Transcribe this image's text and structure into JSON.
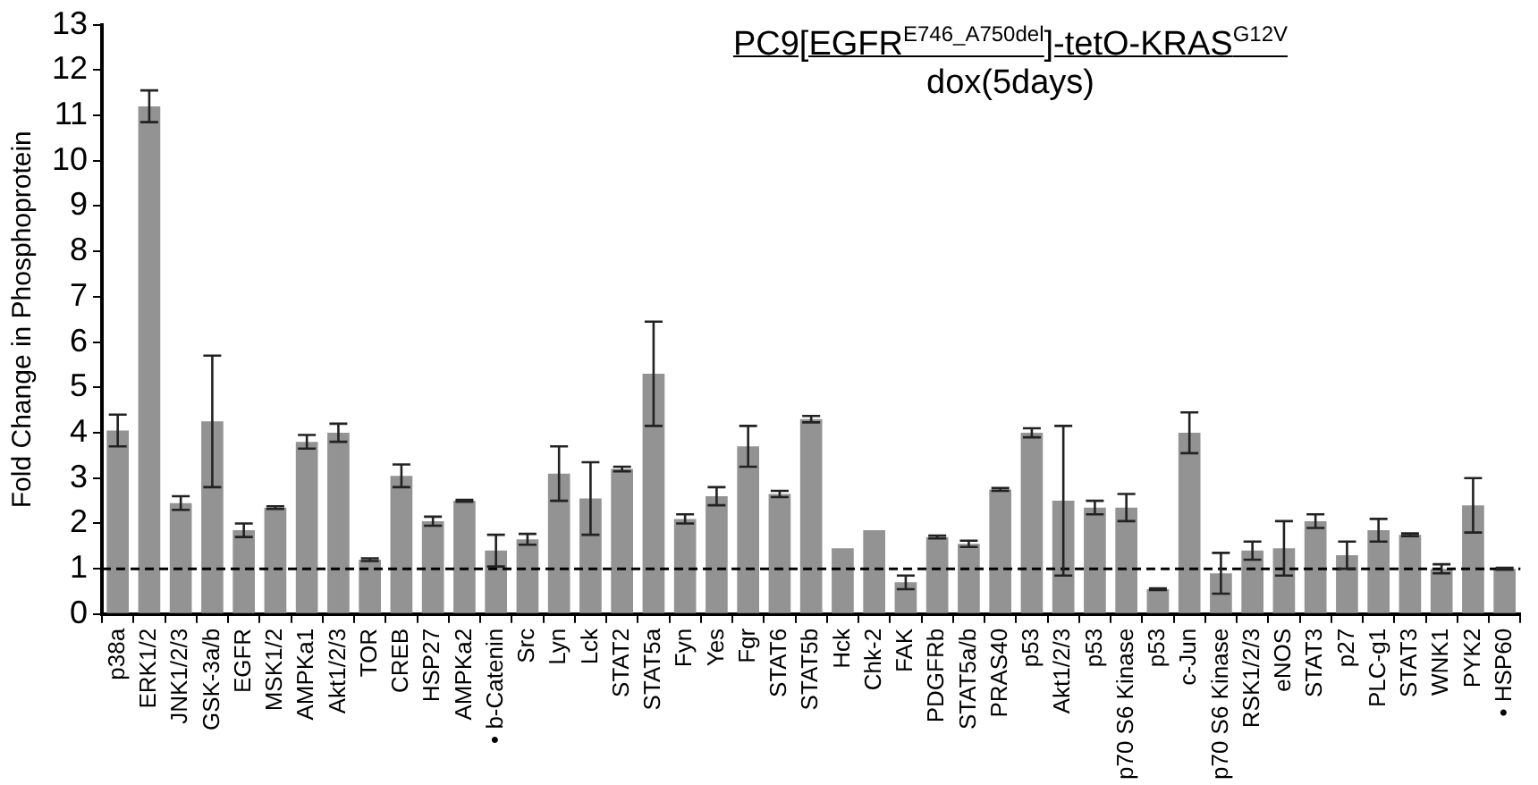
{
  "chart_data": {
    "type": "bar",
    "title": "PC9[EGFR$^{E746_A750del}$]-tetO-KRAS$^{G12V}$",
    "subtitle": "dox(5days)",
    "ylabel": "Fold Change in Phosphoprotein",
    "categories": [
      "p38a",
      "ERK1/2",
      "JNK1/2/3",
      "GSK-3a/b",
      "EGFR",
      "MSK1/2",
      "AMPKa1",
      "Akt1/2/3",
      "TOR",
      "CREB",
      "HSP27",
      "AMPKa2",
      "• b-Catenin",
      "Src",
      "Lyn",
      "Lck",
      "STAT2",
      "STAT5a",
      "Fyn",
      "Yes",
      "Fgr",
      "STAT6",
      "STAT5b",
      "Hck",
      "Chk-2",
      "FAK",
      "PDGFRb",
      "STAT5a/b",
      "PRAS40",
      "p53",
      "Akt1/2/3",
      "p53",
      "p70 S6 Kinase",
      "p53",
      "c-Jun",
      "p70 S6 Kinase",
      "RSK1/2/3",
      "eNOS",
      "STAT3",
      "p27",
      "PLC-g1",
      "STAT3",
      "WNK1",
      "PYK2",
      "• HSP60"
    ],
    "values": [
      4.05,
      11.2,
      2.45,
      4.25,
      1.85,
      2.35,
      3.8,
      4.0,
      1.2,
      3.05,
      2.05,
      2.5,
      1.4,
      1.65,
      3.1,
      2.55,
      3.2,
      5.3,
      2.1,
      2.6,
      3.7,
      2.65,
      4.3,
      1.45,
      1.85,
      0.7,
      1.7,
      1.55,
      2.75,
      4.0,
      2.5,
      2.35,
      2.35,
      0.55,
      4.0,
      0.9,
      1.4,
      1.45,
      2.05,
      1.3,
      1.85,
      1.75,
      1.0,
      2.4,
      1.0
    ],
    "errors": [
      0.35,
      0.35,
      0.15,
      1.45,
      0.15,
      0.03,
      0.15,
      0.2,
      0.03,
      0.25,
      0.1,
      0.02,
      0.35,
      0.12,
      0.6,
      0.8,
      0.05,
      1.15,
      0.1,
      0.2,
      0.45,
      0.07,
      0.07,
      null,
      null,
      0.15,
      0.03,
      0.07,
      0.03,
      0.1,
      1.65,
      0.15,
      0.3,
      0.02,
      0.45,
      0.45,
      0.2,
      0.6,
      0.15,
      0.3,
      0.25,
      0.03,
      0.1,
      0.6,
      0.02
    ],
    "color": "#939393",
    "ylim": [
      0,
      13
    ],
    "yticks": [
      0,
      1,
      2,
      3,
      4,
      5,
      6,
      7,
      8,
      9,
      10,
      11,
      12,
      13
    ],
    "ref_lines": [
      {
        "axis": "y",
        "value": 1,
        "line_style": "dashed",
        "color": "#000000"
      }
    ],
    "grid": false,
    "legend": false
  }
}
